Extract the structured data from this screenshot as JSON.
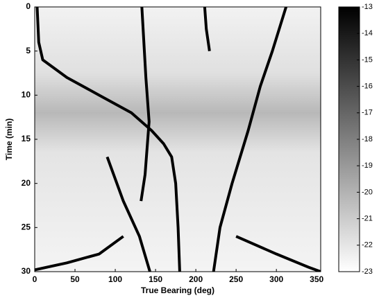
{
  "chart_data": {
    "type": "line",
    "xlabel": "True Bearing (deg)",
    "ylabel": "Time (min)",
    "xlim": [
      0,
      355
    ],
    "xticks": [
      0,
      50,
      100,
      150,
      200,
      250,
      300,
      350
    ],
    "ylim": [
      0,
      30
    ],
    "y_inverted": true,
    "yticks": [
      0,
      5,
      10,
      15,
      20,
      25,
      30
    ],
    "series": [
      {
        "color": "#000000",
        "x": [
          3,
          5,
          10,
          40,
          80,
          120,
          145,
          160,
          170,
          175,
          178,
          180
        ],
        "values": [
          0,
          4,
          6,
          8,
          10,
          12,
          14,
          15.5,
          17,
          20,
          25,
          30
        ]
      },
      {
        "color": "#000000",
        "x": [
          133,
          138,
          142,
          137,
          132
        ],
        "values": [
          0,
          8,
          13,
          19,
          22
        ]
      },
      {
        "color": "#000000",
        "x": [
          211,
          213,
          217
        ],
        "values": [
          0,
          2.5,
          5
        ]
      },
      {
        "color": "#000000",
        "x": [
          312,
          295,
          280,
          265,
          245,
          230,
          222
        ],
        "values": [
          0,
          5,
          9,
          14,
          20,
          25,
          30
        ]
      },
      {
        "color": "#000000",
        "x": [
          90,
          110,
          130,
          143
        ],
        "values": [
          17,
          22,
          26,
          30
        ]
      },
      {
        "color": "#000000",
        "x": [
          0,
          40,
          80,
          110
        ],
        "values": [
          29.8,
          29,
          28,
          26
        ]
      },
      {
        "color": "#000000",
        "x": [
          250,
          300,
          340,
          355
        ],
        "values": [
          26,
          28,
          29.5,
          30
        ]
      }
    ],
    "colorbar": {
      "clim": [
        -23,
        -13
      ],
      "ticks": [
        -13,
        -14,
        -15,
        -16,
        -17,
        -18,
        -19,
        -20,
        -21,
        -22,
        -23
      ],
      "colors": [
        "#ffffff",
        "#000000"
      ]
    }
  }
}
